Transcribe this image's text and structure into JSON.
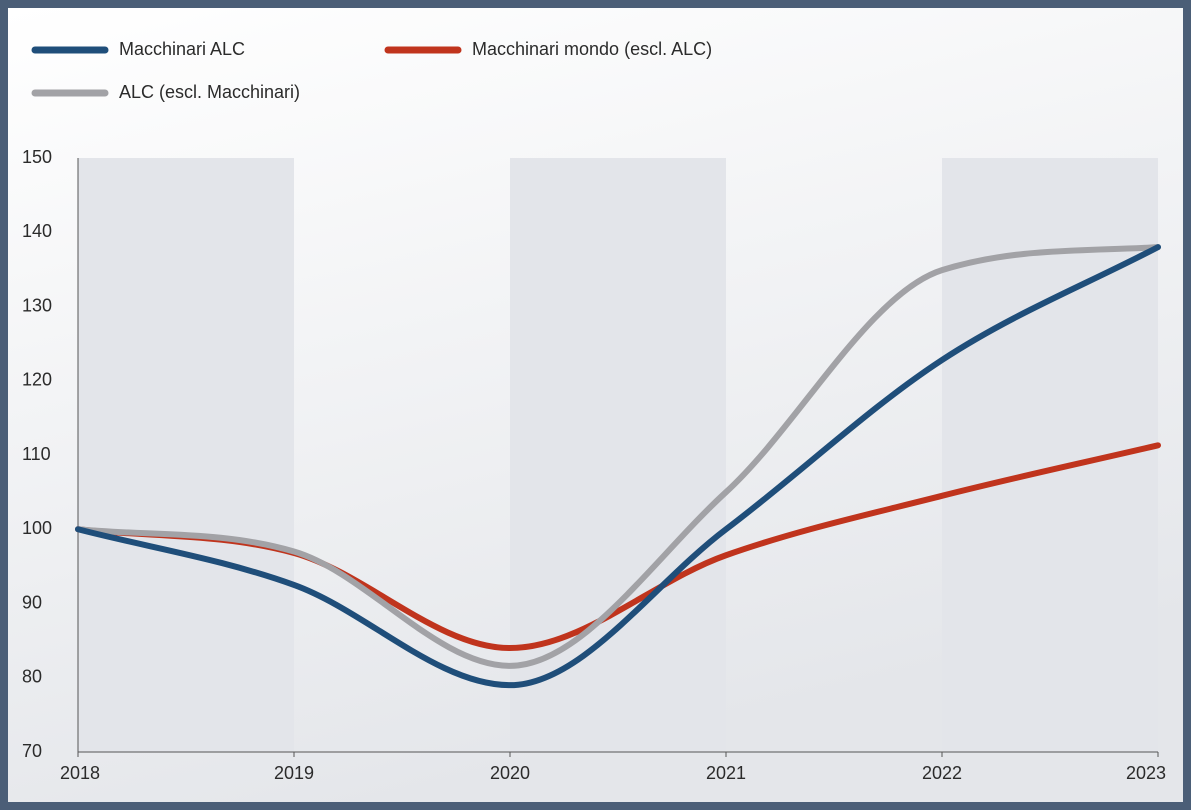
{
  "chart_data": {
    "type": "line",
    "x": [
      2018,
      2019,
      2020,
      2021,
      2022,
      2023
    ],
    "series": [
      {
        "name": "Macchinari ALC",
        "color": "#1f4e7a",
        "values": [
          100,
          92.5,
          79,
          100,
          122.8,
          138
        ]
      },
      {
        "name": "Macchinari mondo (escl. ALC)",
        "color": "#c0341d",
        "values": [
          100,
          96.8,
          84,
          96.5,
          104.5,
          111.3
        ]
      },
      {
        "name": "ALC (escl. Macchinari)",
        "color": "#a2a2a6",
        "values": [
          100,
          97,
          81.6,
          105,
          134.9,
          138
        ]
      }
    ],
    "xlim": [
      2018,
      2023
    ],
    "xticks": [
      2018,
      2019,
      2020,
      2021,
      2022,
      2023
    ],
    "ylim": [
      70,
      150
    ],
    "yticks": [
      70,
      80,
      90,
      100,
      110,
      120,
      130,
      140,
      150
    ],
    "grid": false,
    "smooth": true,
    "year_bands": true,
    "legend": "top-left"
  }
}
